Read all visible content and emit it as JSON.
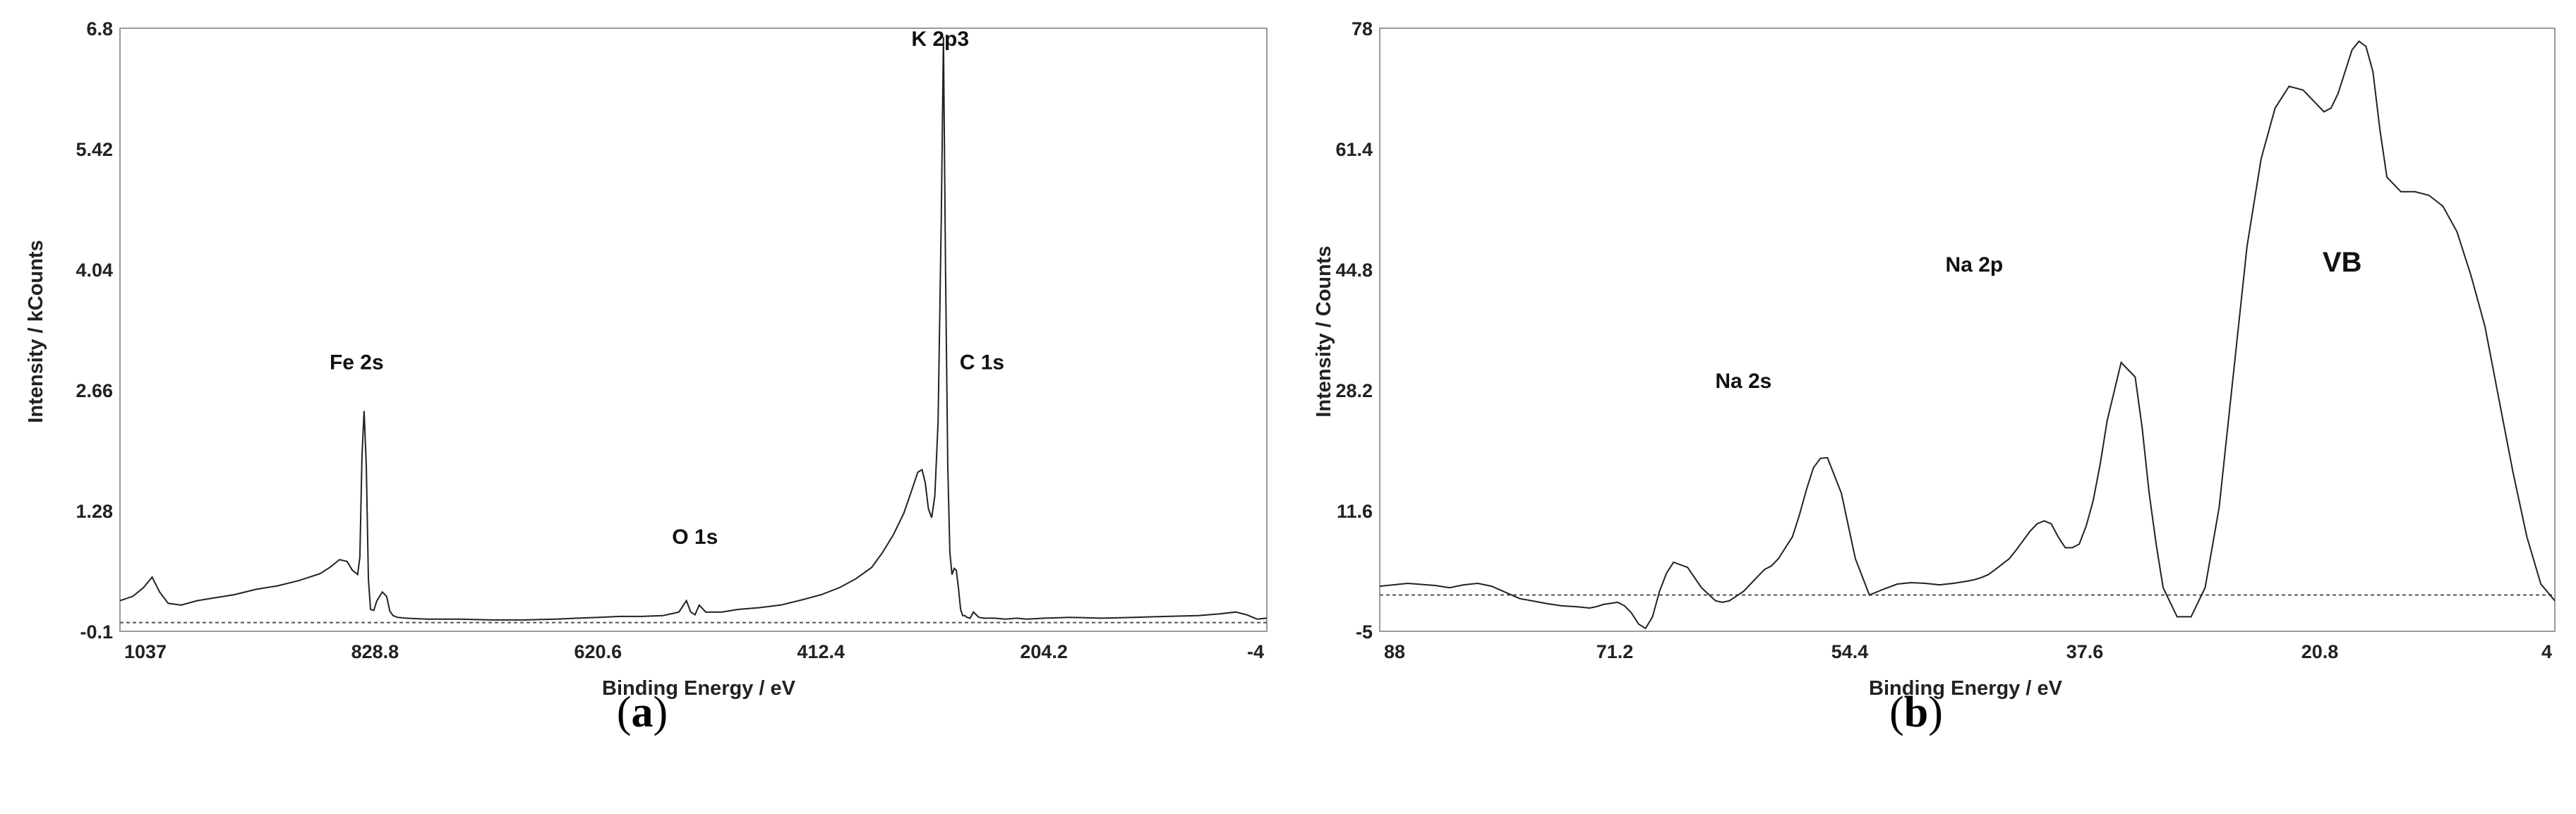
{
  "chart_data": [
    {
      "id": "a",
      "type": "line",
      "caption": {
        "open": "(",
        "letter": "a",
        "close": ")"
      },
      "xlabel": "Binding Energy / eV",
      "ylabel": "Intensity / kCounts",
      "xlim": [
        1067,
        -4
      ],
      "ylim": [
        -0.1,
        6.8
      ],
      "xticks": [
        "1037",
        "828.8",
        "620.6",
        "412.4",
        "204.2",
        "-4"
      ],
      "xtick_values": [
        1037,
        828.8,
        620.6,
        412.4,
        204.2,
        -4
      ],
      "yticks": [
        "-0.1",
        "1.28",
        "2.66",
        "4.04",
        "5.42",
        "6.8"
      ],
      "ytick_values": [
        -0.1,
        1.28,
        2.66,
        4.04,
        5.42,
        6.8
      ],
      "baseline": 0.0,
      "annotations": [
        {
          "text": "Fe 2s",
          "x": 846,
          "y": 2.9
        },
        {
          "text": "O 1s",
          "x": 530,
          "y": 0.9
        },
        {
          "text": "K 2p3",
          "x": 301,
          "y": 6.6
        },
        {
          "text": "C 1s",
          "x": 262,
          "y": 2.9
        }
      ],
      "series": [
        {
          "x": [
            1067,
            1055,
            1045,
            1037,
            1030,
            1022,
            1010,
            995,
            980,
            960,
            940,
            920,
            900,
            880,
            870,
            862,
            855,
            850,
            845,
            843,
            841,
            839,
            837,
            835,
            833,
            830,
            827,
            822,
            818,
            815,
            812,
            808,
            800,
            780,
            750,
            720,
            690,
            660,
            640,
            620,
            600,
            580,
            560,
            545,
            538,
            534,
            530,
            526,
            520,
            505,
            490,
            470,
            450,
            430,
            412,
            395,
            380,
            365,
            355,
            345,
            335,
            328,
            322,
            318,
            315,
            312,
            309,
            306,
            303,
            300,
            298,
            296,
            294,
            292,
            290,
            288,
            286,
            284,
            282,
            280,
            278,
            276,
            273,
            270,
            265,
            260,
            255,
            250,
            240,
            230,
            220,
            204,
            180,
            150,
            120,
            90,
            60,
            40,
            25,
            15,
            5,
            -4
          ],
          "values": [
            0.25,
            0.3,
            0.4,
            0.52,
            0.35,
            0.22,
            0.2,
            0.25,
            0.28,
            0.32,
            0.38,
            0.42,
            0.48,
            0.56,
            0.64,
            0.72,
            0.7,
            0.6,
            0.55,
            0.75,
            1.9,
            2.42,
            1.8,
            0.5,
            0.15,
            0.14,
            0.25,
            0.35,
            0.3,
            0.13,
            0.08,
            0.06,
            0.05,
            0.04,
            0.04,
            0.03,
            0.03,
            0.04,
            0.05,
            0.06,
            0.07,
            0.07,
            0.08,
            0.12,
            0.25,
            0.12,
            0.09,
            0.2,
            0.12,
            0.12,
            0.15,
            0.17,
            0.2,
            0.26,
            0.32,
            0.4,
            0.5,
            0.63,
            0.8,
            1.0,
            1.25,
            1.5,
            1.72,
            1.75,
            1.6,
            1.3,
            1.2,
            1.45,
            2.3,
            4.6,
            6.7,
            4.0,
            1.8,
            0.8,
            0.55,
            0.62,
            0.6,
            0.4,
            0.15,
            0.08,
            0.08,
            0.06,
            0.05,
            0.12,
            0.06,
            0.05,
            0.05,
            0.05,
            0.04,
            0.05,
            0.04,
            0.05,
            0.06,
            0.05,
            0.06,
            0.07,
            0.08,
            0.1,
            0.12,
            0.09,
            0.04,
            0.05
          ]
        }
      ]
    },
    {
      "id": "b",
      "type": "line",
      "caption": {
        "open": "(",
        "letter": "b",
        "close": ")"
      },
      "xlabel": "Binding Energy / eV",
      "ylabel": "Intensity / Counts",
      "xlim": [
        88,
        4
      ],
      "ylim": [
        -5,
        78
      ],
      "xticks": [
        "88",
        "71.2",
        "54.4",
        "37.6",
        "20.8",
        "4"
      ],
      "xtick_values": [
        88,
        71.2,
        54.4,
        37.6,
        20.8,
        4
      ],
      "yticks": [
        "-5",
        "11.6",
        "28.2",
        "44.8",
        "61.4",
        "78"
      ],
      "yticks_values_note": "",
      "ytick_values": [
        -5,
        11.6,
        28.2,
        44.8,
        61.4,
        78
      ],
      "baseline": 0.0,
      "annotations": [
        {
          "text": "Na 2s",
          "x": 62,
          "y": 28.5,
          "size": "normal"
        },
        {
          "text": "Na 2p",
          "x": 45.5,
          "y": 44.5,
          "size": "normal"
        },
        {
          "text": "VB",
          "x": 19.2,
          "y": 44.5,
          "size": "large"
        }
      ],
      "series": [
        {
          "x": [
            88,
            86,
            84,
            83,
            82,
            81,
            80,
            78,
            76,
            75,
            74,
            73.5,
            73,
            72.5,
            72,
            71,
            70.5,
            70,
            69.5,
            69,
            68.5,
            68,
            67.5,
            67,
            66,
            65,
            64,
            63.5,
            63,
            62,
            61,
            60.5,
            60,
            59.5,
            59,
            58.5,
            58,
            57.5,
            57,
            56.5,
            56,
            55,
            54,
            53,
            52,
            51,
            50,
            49,
            48,
            47,
            46,
            45.5,
            45,
            44.5,
            44,
            43,
            42.5,
            42,
            41.5,
            41,
            40.5,
            40,
            39.5,
            39,
            38.5,
            38,
            37.5,
            37,
            36.5,
            36,
            35,
            34,
            33.5,
            33,
            32.5,
            32,
            31,
            30,
            29,
            28,
            27,
            26,
            25,
            24,
            23,
            22,
            21,
            20.5,
            20,
            19.5,
            19,
            18.5,
            18,
            17.5,
            17,
            16.5,
            16,
            15,
            14,
            13,
            12,
            11,
            10,
            9,
            8,
            7,
            6,
            5,
            4
          ],
          "values": [
            1.2,
            1.6,
            1.3,
            1.0,
            1.4,
            1.6,
            1.2,
            -0.5,
            -1.2,
            -1.5,
            -1.6,
            -1.7,
            -1.8,
            -1.6,
            -1.3,
            -1.0,
            -1.5,
            -2.5,
            -4.0,
            -4.6,
            -3.0,
            0.5,
            3.0,
            4.5,
            3.8,
            1.0,
            -0.8,
            -1.0,
            -0.8,
            0.5,
            2.5,
            3.5,
            4.0,
            5.0,
            6.5,
            8.0,
            11.0,
            14.5,
            17.5,
            18.8,
            18.9,
            14.0,
            5.0,
            0.0,
            0.8,
            1.5,
            1.7,
            1.6,
            1.4,
            1.6,
            1.9,
            2.1,
            2.4,
            2.8,
            3.5,
            5.0,
            6.2,
            7.5,
            8.8,
            9.8,
            10.2,
            9.8,
            8.0,
            6.5,
            6.5,
            7.0,
            9.5,
            13.0,
            18.0,
            24.0,
            32.0,
            30.0,
            23.0,
            14.0,
            7.0,
            1.0,
            -3.0,
            -3.0,
            1.0,
            12.0,
            30.0,
            48.0,
            60.0,
            67.0,
            70.0,
            69.5,
            67.5,
            66.5,
            67.0,
            69.0,
            72.0,
            75.0,
            76.2,
            75.5,
            72.0,
            64.0,
            57.5,
            55.5,
            55.5,
            55.0,
            53.5,
            50.0,
            44.0,
            37.0,
            27.0,
            17.0,
            8.0,
            1.5,
            -0.8
          ]
        }
      ]
    }
  ]
}
